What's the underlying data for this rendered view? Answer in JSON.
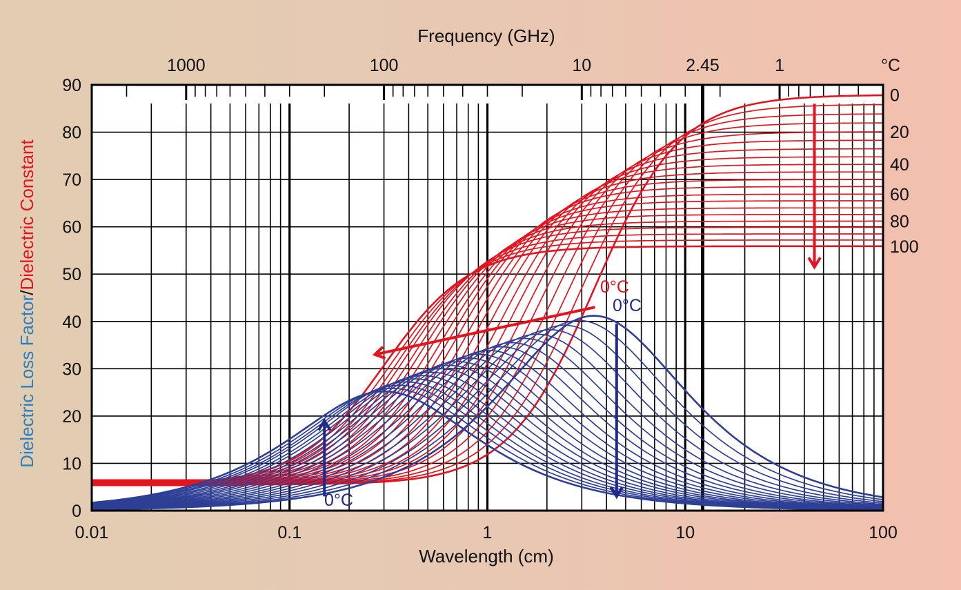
{
  "chart_data": {
    "type": "line",
    "top_axis": {
      "title": "Frequency (GHz)",
      "tick_labels": [
        "1000",
        "100",
        "10",
        "2.45",
        "1"
      ],
      "tick_values_ghz": [
        1000,
        100,
        10,
        2.45,
        1
      ],
      "unit_label": "°C"
    },
    "x_axis": {
      "title": "Wavelength (cm)",
      "scale": "log",
      "range": [
        0.01,
        100
      ],
      "tick_labels": [
        "0.01",
        "0.1",
        "1",
        "10",
        "100"
      ]
    },
    "y_axis": {
      "title_blue": "Dielectric Loss Factor",
      "title_sep": "/",
      "title_red": "Dielectric Constant",
      "range": [
        0,
        90
      ],
      "tick_labels": [
        "0",
        "10",
        "20",
        "30",
        "40",
        "50",
        "60",
        "70",
        "80",
        "90"
      ]
    },
    "temperature_labels": [
      "0",
      "20",
      "40",
      "60",
      "80",
      "100"
    ],
    "annotations": {
      "red_0c": "0°C",
      "blue_0c_top": "0°C",
      "blue_0c_bottom": "0°C"
    },
    "debye_model": {
      "temperatures_c": [
        0,
        5,
        10,
        15,
        20,
        25,
        30,
        35,
        40,
        45,
        50,
        55,
        60,
        65,
        70,
        75,
        80,
        85,
        90,
        95,
        100
      ],
      "static_constant": [
        87.9,
        85.9,
        83.9,
        82.0,
        80.1,
        78.3,
        76.5,
        74.8,
        73.2,
        71.6,
        70.0,
        68.5,
        66.9,
        65.5,
        64.0,
        62.6,
        61.2,
        59.9,
        58.5,
        57.2,
        55.9
      ],
      "high_freq_constant": 5.5,
      "relaxation_wavelength_cm": [
        3.45,
        2.9,
        2.45,
        2.08,
        1.78,
        1.54,
        1.33,
        1.17,
        1.02,
        0.9,
        0.8,
        0.71,
        0.64,
        0.58,
        0.52,
        0.47,
        0.43,
        0.39,
        0.36,
        0.33,
        0.3
      ]
    },
    "colors": {
      "constant": "#e3141f",
      "loss": "#2e3f96",
      "grid": "#000000",
      "background": "#ffffff"
    },
    "grid": true
  }
}
